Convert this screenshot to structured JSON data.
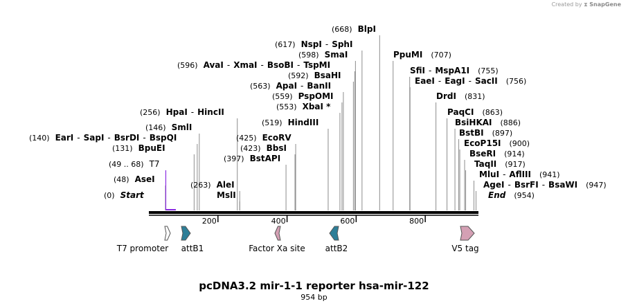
{
  "credit": {
    "prefix": "Created by",
    "brand": "SnapGene"
  },
  "plasmid": {
    "name": "pcDNA3.2 mir-1-1 reporter hsa-mir-122",
    "length_label": "954 bp",
    "length": 954
  },
  "ruler": {
    "start": 1,
    "end": 954,
    "ticks": [
      200,
      400,
      600,
      800
    ]
  },
  "sites": [
    {
      "pos_label": "(0)",
      "names": [
        "Start"
      ],
      "pos": 0,
      "italic": true
    },
    {
      "pos_label": "(48)",
      "names": [
        "AseI"
      ],
      "pos": 48
    },
    {
      "pos_label": "(49 .. 68)",
      "names": [
        "T7"
      ],
      "pos": 49,
      "primer": true
    },
    {
      "pos_label": "(131)",
      "names": [
        "BpuEI"
      ],
      "pos": 131
    },
    {
      "pos_label": "(140)",
      "names": [
        "EarI",
        "SapI",
        "BsrDI",
        "BspQI"
      ],
      "pos": 140
    },
    {
      "pos_label": "(146)",
      "names": [
        "SmlI"
      ],
      "pos": 146
    },
    {
      "pos_label": "(256)",
      "names": [
        "HpaI",
        "HincII"
      ],
      "pos": 256
    },
    {
      "pos_label": "(263)",
      "names": [
        "AleI"
      ],
      "pos": 263
    },
    {
      "pos_label": "",
      "names": [
        "MslI"
      ],
      "pos": 263
    },
    {
      "pos_label": "(397)",
      "names": [
        "BstAPI"
      ],
      "pos": 397
    },
    {
      "pos_label": "(423)",
      "names": [
        "BbsI"
      ],
      "pos": 423
    },
    {
      "pos_label": "(425)",
      "names": [
        "EcoRV"
      ],
      "pos": 425
    },
    {
      "pos_label": "(519)",
      "names": [
        "HindIII"
      ],
      "pos": 519
    },
    {
      "pos_label": "(553)",
      "names": [
        "XbaI *"
      ],
      "pos": 553
    },
    {
      "pos_label": "(559)",
      "names": [
        "PspOMI"
      ],
      "pos": 559
    },
    {
      "pos_label": "(563)",
      "names": [
        "ApaI",
        "BanII"
      ],
      "pos": 563
    },
    {
      "pos_label": "(592)",
      "names": [
        "BsaHI"
      ],
      "pos": 592
    },
    {
      "pos_label": "(596)",
      "names": [
        "AvaI",
        "XmaI",
        "BsoBI",
        "TspMI"
      ],
      "pos": 596
    },
    {
      "pos_label": "(598)",
      "names": [
        "SmaI"
      ],
      "pos": 598
    },
    {
      "pos_label": "(617)",
      "names": [
        "NspI",
        "SphI"
      ],
      "pos": 617
    },
    {
      "pos_label": "(668)",
      "names": [
        "BlpI"
      ],
      "pos": 668
    },
    {
      "pos_label": "(707)",
      "names": [
        "PpuMI"
      ],
      "pos": 707
    },
    {
      "pos_label": "(755)",
      "names": [
        "SfiI",
        "MspA1I"
      ],
      "pos": 755
    },
    {
      "pos_label": "(756)",
      "names": [
        "EaeI",
        "EagI",
        "SacII"
      ],
      "pos": 756
    },
    {
      "pos_label": "(831)",
      "names": [
        "DrdI"
      ],
      "pos": 831
    },
    {
      "pos_label": "(863)",
      "names": [
        "PaqCI"
      ],
      "pos": 863
    },
    {
      "pos_label": "(886)",
      "names": [
        "BsiHKAI"
      ],
      "pos": 886
    },
    {
      "pos_label": "(897)",
      "names": [
        "BstBI"
      ],
      "pos": 897
    },
    {
      "pos_label": "(900)",
      "names": [
        "EcoP15I"
      ],
      "pos": 900
    },
    {
      "pos_label": "(914)",
      "names": [
        "BseRI"
      ],
      "pos": 914
    },
    {
      "pos_label": "(917)",
      "names": [
        "TaqII"
      ],
      "pos": 917
    },
    {
      "pos_label": "(941)",
      "names": [
        "MluI",
        "AflIII"
      ],
      "pos": 941
    },
    {
      "pos_label": "(947)",
      "names": [
        "AgeI",
        "BsrFI",
        "BsaWI"
      ],
      "pos": 947
    },
    {
      "pos_label": "(954)",
      "names": [
        "End"
      ],
      "pos": 954,
      "italic": true
    }
  ],
  "features": [
    {
      "name": "T7 promoter",
      "start": 49,
      "end": 68,
      "direction": "forward",
      "color": "#ffffff"
    },
    {
      "name": "attB1",
      "start": 96,
      "end": 120,
      "direction": "forward",
      "color": "#2e7f98"
    },
    {
      "name": "Factor Xa site",
      "start": 365,
      "end": 376,
      "direction": "reverse",
      "color": "#d4a0b4"
    },
    {
      "name": "attB2",
      "start": 530,
      "end": 554,
      "direction": "reverse",
      "color": "#2e7f98"
    },
    {
      "name": "V5 tag",
      "start": 905,
      "end": 946,
      "direction": "forward",
      "color": "#d4a0b4"
    }
  ],
  "colors": {
    "primer": "#8a2be2",
    "backbone": "#000000",
    "line": "#8c8c8c"
  }
}
